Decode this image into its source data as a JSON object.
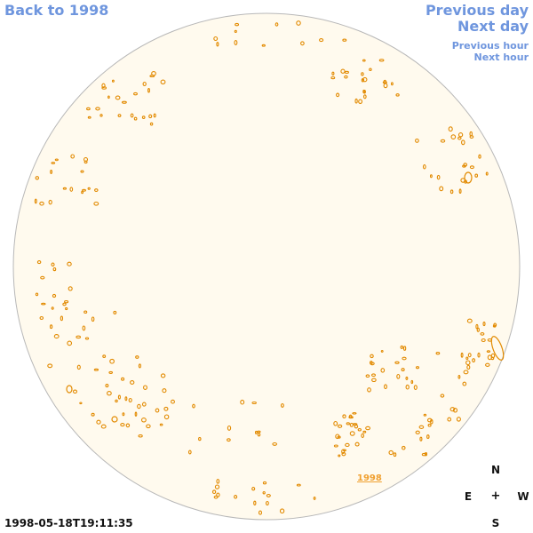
{
  "nav": {
    "back_label": "Back to 1998",
    "previous_day_label": "Previous day",
    "next_day_label": "Next day",
    "previous_hour_label": "Previous hour",
    "next_hour_label": "Next hour"
  },
  "timestamp": "1998-05-18T19:11:35",
  "compass": {
    "north": "N",
    "east": "E",
    "center": "+",
    "west": "W",
    "south": "S"
  },
  "region_label": "1998",
  "colors": {
    "disk_fill": "#fffaee",
    "disk_stroke": "#b8b8b8",
    "contour": "#e28a00",
    "link": "#6f96de",
    "region_label": "#f0a030"
  }
}
